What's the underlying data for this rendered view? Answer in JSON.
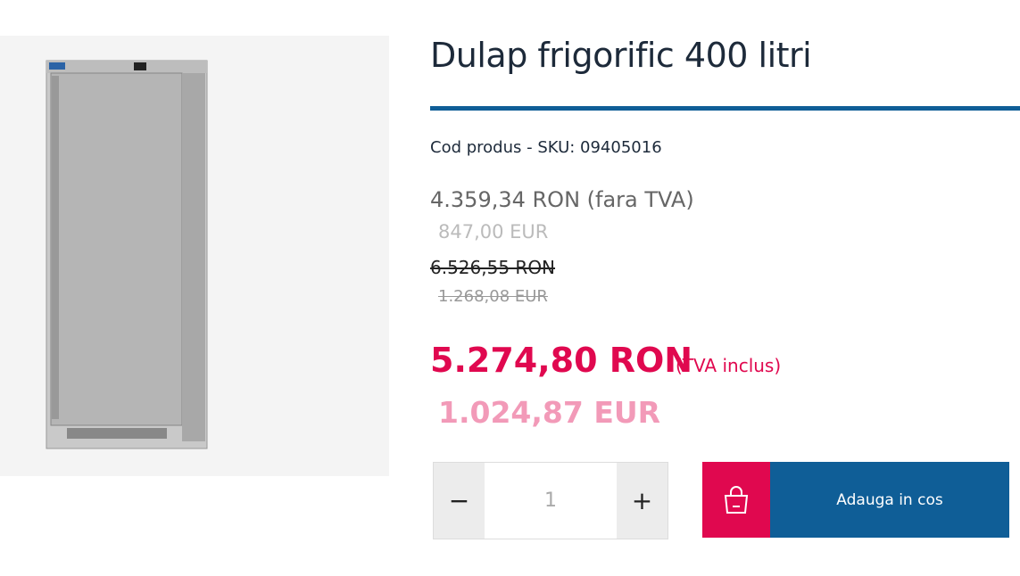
{
  "product": {
    "title": "Dulap frigorific 400 litri",
    "sku": "Cod produs - SKU: 09405016",
    "price_net": "4.359,34 RON (fara TVA)",
    "price_net_eur": "847,00 EUR",
    "old_price": "6.526,55 RON",
    "old_price_eur": "1.268,08 EUR",
    "price": "5.274,80 RON",
    "price_note": "(TVA inclus)",
    "price_eur": "1.024,87 EUR",
    "minus": "−",
    "quantity": "1",
    "plus": "+",
    "add_to_cart": "Adauga in cos"
  }
}
